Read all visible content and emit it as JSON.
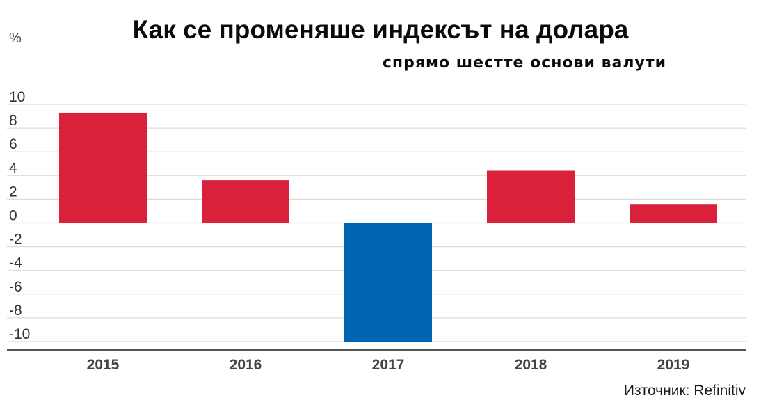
{
  "chart_data": {
    "type": "bar",
    "title": "Как се променяше индексът на долара",
    "subtitle": "спрямо шестте основи валути",
    "ylabel": "%",
    "categories": [
      "2015",
      "2016",
      "2017",
      "2018",
      "2019"
    ],
    "values": [
      9.3,
      3.6,
      -10.0,
      4.4,
      1.6
    ],
    "ylim": [
      -10,
      10
    ],
    "yticks": [
      10,
      8,
      6,
      4,
      2,
      0,
      -2,
      -4,
      -6,
      -8,
      -10
    ],
    "grid": true,
    "legend": "none",
    "source": "Източник: Refinitiv",
    "colors": {
      "positive": "#d9213c",
      "negative": "#0066b3",
      "grid": "#dcdcdc",
      "axis": "#555555"
    }
  }
}
